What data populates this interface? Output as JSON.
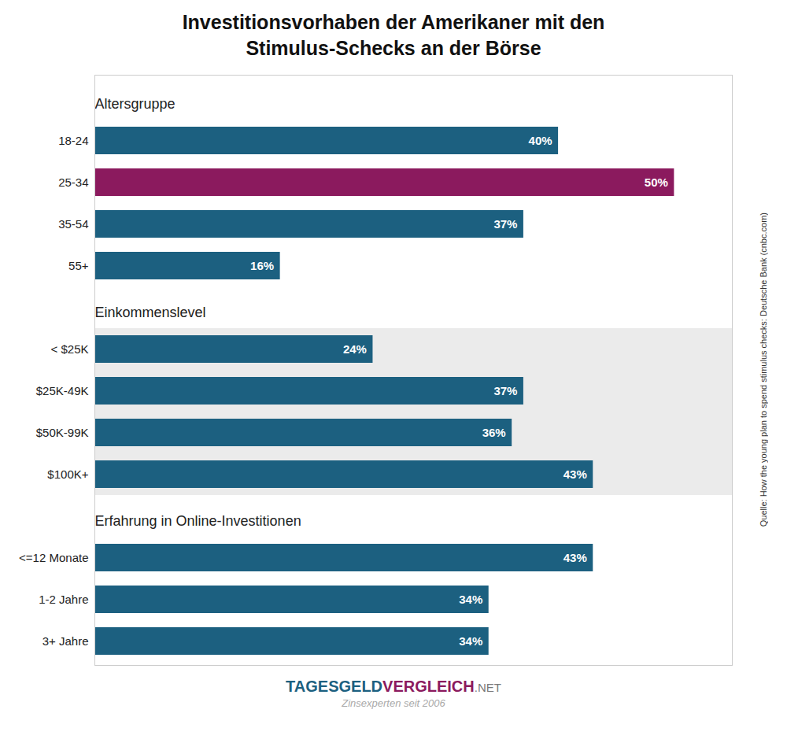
{
  "chart_data": {
    "type": "bar",
    "orientation": "horizontal",
    "title": "Investitionsvorhaben der Amerikaner mit den\nStimulus-Schecks an der Börse",
    "categories": [
      "18-24",
      "25-34",
      "35-54",
      "55+",
      "< $25K",
      "$25K-49K",
      "$50K-99K",
      "$100K+",
      "<=12 Monate",
      "1-2 Jahre",
      "3+ Jahre"
    ],
    "values": [
      40,
      50,
      37,
      16,
      24,
      37,
      36,
      43,
      43,
      34,
      34
    ],
    "value_labels": [
      "40%",
      "50%",
      "37%",
      "16%",
      "24%",
      "37%",
      "36%",
      "43%",
      "43%",
      "34%",
      "34%"
    ],
    "colors": [
      "#1c6080",
      "#8b1a5e",
      "#1c6080",
      "#1c6080",
      "#1c6080",
      "#1c6080",
      "#1c6080",
      "#1c6080",
      "#1c6080",
      "#1c6080",
      "#1c6080"
    ],
    "groups": [
      {
        "label": "Altersgruppe",
        "categories": [
          "18-24",
          "25-34",
          "35-54",
          "55+"
        ]
      },
      {
        "label": "Einkommenslevel",
        "categories": [
          "< $25K",
          "$25K-49K",
          "$50K-99K",
          "$100K+"
        ],
        "color": "#ebebeb"
      },
      {
        "label": "Erfahrung in Online-Investitionen",
        "categories": [
          "<=12 Monate",
          "1-2 Jahre",
          "3+ Jahre"
        ]
      }
    ],
    "xlim": [
      0,
      55
    ],
    "tick_labels": "y",
    "data_labels": true,
    "grid": false,
    "annotations": [
      {
        "text": "Quelle: How the young plan to spend stimulus checks: Deutsche Bank (cnbc.com)",
        "color": "#333333"
      },
      {
        "text": "TAGESGELD",
        "color": "#1c6080"
      },
      {
        "text": "VERGLEICH",
        "color": "#8b1a5e"
      },
      {
        "text": ".NET",
        "color": "#777777"
      },
      {
        "text": "Zinsexperten seit 2006",
        "color": "#aaaaaa"
      }
    ]
  }
}
